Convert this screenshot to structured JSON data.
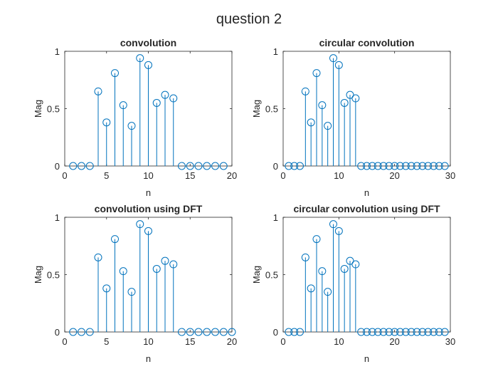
{
  "figure": {
    "title": "question 2",
    "stem_color": "#0072BD",
    "axis_color": "#262626",
    "background": "#ffffff"
  },
  "chart_data": [
    {
      "type": "stem",
      "title": "convolution",
      "xlabel": "n",
      "ylabel": "Mag",
      "xlim": [
        0,
        20
      ],
      "ylim": [
        0,
        1
      ],
      "xticks": [
        0,
        5,
        10,
        15,
        20
      ],
      "yticks": [
        0,
        0.5,
        1
      ],
      "ytick_labels": [
        "0",
        "0.5",
        "1"
      ],
      "grid": false,
      "x": [
        1,
        2,
        3,
        4,
        5,
        6,
        7,
        8,
        9,
        10,
        11,
        12,
        13,
        14,
        15,
        16,
        17,
        18,
        19
      ],
      "y": [
        0,
        0,
        0,
        0.65,
        0.38,
        0.81,
        0.53,
        0.35,
        0.94,
        0.88,
        0.55,
        0.62,
        0.59,
        0,
        0,
        0,
        0,
        0,
        0
      ]
    },
    {
      "type": "stem",
      "title": "circular convolution",
      "xlabel": "n",
      "ylabel": "Mag",
      "xlim": [
        0,
        30
      ],
      "ylim": [
        0,
        1
      ],
      "xticks": [
        0,
        10,
        20,
        30
      ],
      "yticks": [
        0,
        0.5,
        1
      ],
      "ytick_labels": [
        "0",
        "0.5",
        "1"
      ],
      "grid": false,
      "x": [
        1,
        2,
        3,
        4,
        5,
        6,
        7,
        8,
        9,
        10,
        11,
        12,
        13,
        14,
        15,
        16,
        17,
        18,
        19,
        20,
        21,
        22,
        23,
        24,
        25,
        26,
        27,
        28,
        29
      ],
      "y": [
        0,
        0,
        0,
        0.65,
        0.38,
        0.81,
        0.53,
        0.35,
        0.94,
        0.88,
        0.55,
        0.62,
        0.59,
        0,
        0,
        0,
        0,
        0,
        0,
        0,
        0,
        0,
        0,
        0,
        0,
        0,
        0,
        0,
        0
      ]
    },
    {
      "type": "stem",
      "title": "convolution using DFT",
      "xlabel": "n",
      "ylabel": "Mag",
      "xlim": [
        0,
        20
      ],
      "ylim": [
        0,
        1
      ],
      "xticks": [
        0,
        5,
        10,
        15,
        20
      ],
      "yticks": [
        0,
        0.5,
        1
      ],
      "ytick_labels": [
        "0",
        "0.5",
        "1"
      ],
      "grid": false,
      "x": [
        1,
        2,
        3,
        4,
        5,
        6,
        7,
        8,
        9,
        10,
        11,
        12,
        13,
        14,
        15,
        16,
        17,
        18,
        19,
        20
      ],
      "y": [
        0,
        0,
        0,
        0.65,
        0.38,
        0.81,
        0.53,
        0.35,
        0.94,
        0.88,
        0.55,
        0.62,
        0.59,
        0,
        0,
        0,
        0,
        0,
        0,
        0
      ]
    },
    {
      "type": "stem",
      "title": "circular convolution using DFT",
      "xlabel": "n",
      "ylabel": "Mag",
      "xlim": [
        0,
        30
      ],
      "ylim": [
        0,
        1
      ],
      "xticks": [
        0,
        10,
        20,
        30
      ],
      "yticks": [
        0,
        0.5,
        1
      ],
      "ytick_labels": [
        "0",
        "0.5",
        "1"
      ],
      "grid": false,
      "x": [
        1,
        2,
        3,
        4,
        5,
        6,
        7,
        8,
        9,
        10,
        11,
        12,
        13,
        14,
        15,
        16,
        17,
        18,
        19,
        20,
        21,
        22,
        23,
        24,
        25,
        26,
        27,
        28,
        29
      ],
      "y": [
        0,
        0,
        0,
        0.65,
        0.38,
        0.81,
        0.53,
        0.35,
        0.94,
        0.88,
        0.55,
        0.62,
        0.59,
        0,
        0,
        0,
        0,
        0,
        0,
        0,
        0,
        0,
        0,
        0,
        0,
        0,
        0,
        0,
        0
      ]
    }
  ]
}
